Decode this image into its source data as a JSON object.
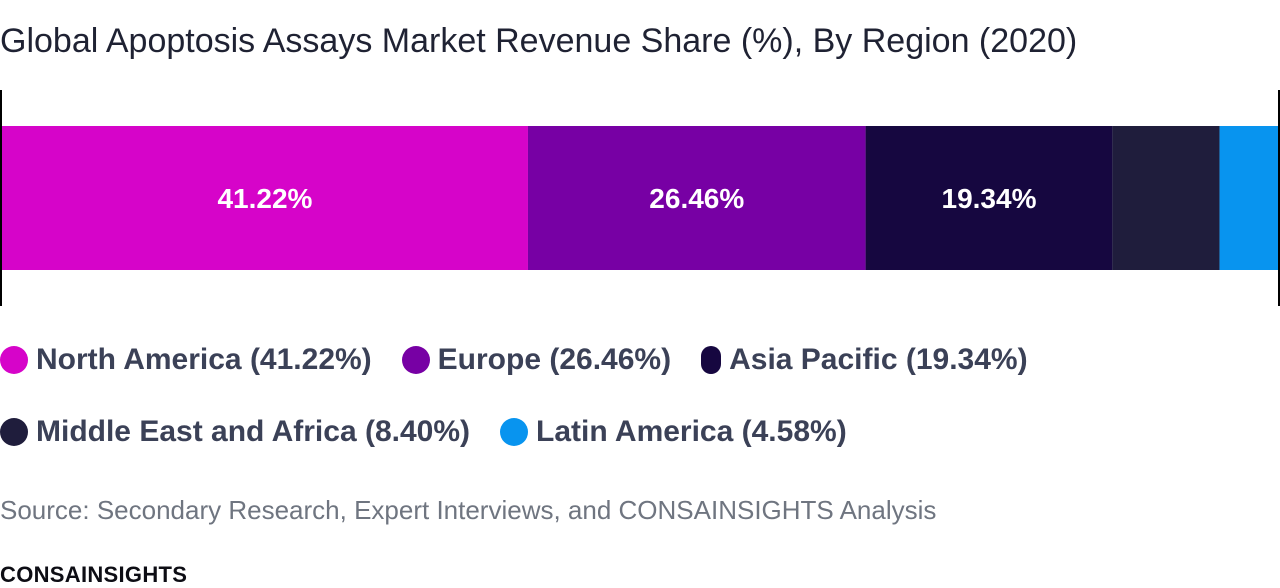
{
  "chart_data": {
    "type": "bar",
    "orientation": "horizontal-stacked",
    "title": "Global Apoptosis Assays Market Revenue Share (%), By Region (2020)",
    "categories": [
      "North America",
      "Europe",
      "Asia Pacific",
      "Middle East and Africa",
      "Latin America"
    ],
    "values": [
      41.22,
      26.46,
      19.34,
      8.4,
      4.58
    ],
    "data_labels": [
      "41.22%",
      "26.46%",
      "19.34%",
      "",
      ""
    ],
    "colors": [
      "#d604c9",
      "#7700a4",
      "#160740",
      "#1f1d3c",
      "#0894ef"
    ],
    "legend_labels": [
      "North America (41.22%)",
      "Europe (26.46%)",
      "Asia Pacific (19.34%)",
      "Middle East and Africa (8.40%)",
      "Latin America (4.58%)"
    ],
    "xlim": [
      0,
      100
    ],
    "legend_position": "bottom",
    "grid": false
  },
  "source": "Source: Secondary Research, Expert Interviews, and CONSAINSIGHTS Analysis",
  "brand": "CONSAINSIGHTS"
}
